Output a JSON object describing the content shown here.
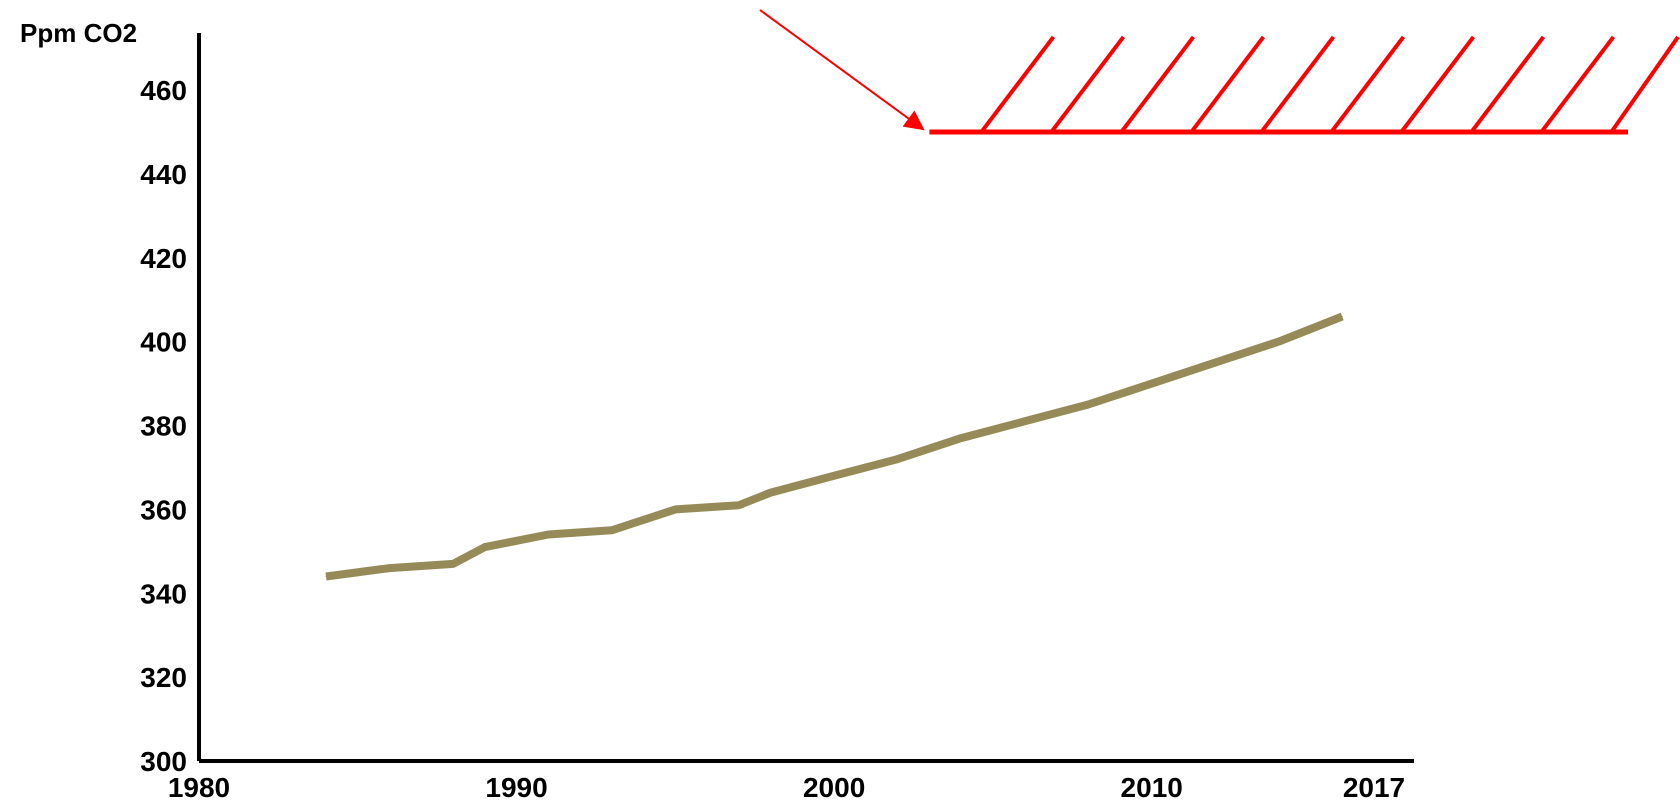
{
  "chart_data": {
    "type": "line",
    "title": "",
    "xlabel": "",
    "ylabel": "Ppm CO2",
    "xlim": [
      1980,
      2017
    ],
    "ylim": [
      300,
      460
    ],
    "x_ticks": [
      {
        "value": 1980,
        "label": "1980"
      },
      {
        "value": 1990,
        "label": "1990"
      },
      {
        "value": 2000,
        "label": "2000"
      },
      {
        "value": 2010,
        "label": "2010"
      },
      {
        "value": 2017,
        "label": "2017"
      }
    ],
    "y_ticks": [
      {
        "value": 300,
        "label": "300"
      },
      {
        "value": 320,
        "label": "320"
      },
      {
        "value": 340,
        "label": "340"
      },
      {
        "value": 360,
        "label": "360"
      },
      {
        "value": 380,
        "label": "380"
      },
      {
        "value": 400,
        "label": "400"
      },
      {
        "value": 420,
        "label": "420"
      },
      {
        "value": 440,
        "label": "440"
      },
      {
        "value": 460,
        "label": "460"
      }
    ],
    "grid": false,
    "legend": "none",
    "series": [
      {
        "x": [
          1984,
          1986,
          1988,
          1989,
          1991,
          1993,
          1995,
          1997,
          1998,
          2000,
          2002,
          2004,
          2006,
          2008,
          2010,
          2012,
          2014,
          2016
        ],
        "y": [
          344,
          346,
          347,
          351,
          354,
          355,
          360,
          361,
          364,
          368,
          372,
          377,
          381,
          385,
          390,
          395,
          400,
          406
        ],
        "color": "#968b58"
      }
    ],
    "threshold": {
      "y": 450,
      "x_start": 2003,
      "x_end": 2025,
      "color": "#ff0000",
      "hatched": true,
      "arrow": true
    }
  }
}
